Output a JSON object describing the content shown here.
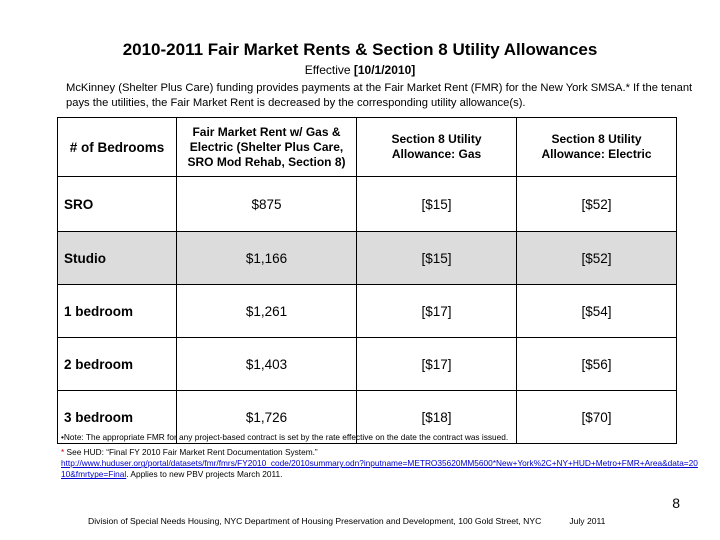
{
  "title": "2010-2011 Fair Market Rents & Section 8 Utility Allowances",
  "subtitle": {
    "prefix": "Effective ",
    "date": "[10/1/2010]"
  },
  "intro": "McKinney (Shelter Plus Care) funding provides payments at the Fair Market Rent (FMR) for the New York SMSA.*  If the tenant pays the utilities, the Fair Market Rent is decreased by the corresponding utility allowance(s).",
  "table": {
    "headers": [
      "# of Bedrooms",
      "Fair Market Rent w/ Gas & Electric (Shelter Plus Care, SRO Mod Rehab, Section 8)",
      "Section 8 Utility Allowance:  Gas",
      "Section 8 Utility Allowance: Electric"
    ],
    "rows": [
      [
        "SRO",
        "$875",
        "[$15]",
        "[$52]"
      ],
      [
        "Studio",
        "$1,166",
        "[$15]",
        "[$52]"
      ],
      [
        "1 bedroom",
        "$1,261",
        "[$17]",
        "[$54]"
      ],
      [
        "2 bedroom",
        "$1,403",
        "[$17]",
        "[$56]"
      ],
      [
        "3 bedroom",
        "$1,726",
        "[$18]",
        "[$70]"
      ]
    ],
    "shaded_row_color": "#dcdcdc"
  },
  "notes": {
    "note": "•Note:  The appropriate FMR for any project-based contract is set by the rate effective on the date the contract was issued.",
    "hud_star": "*",
    "hud_prefix": " See HUD: “Final FY 2010 Fair Market Rent Documentation System.”",
    "hud_link": "http://www.huduser.org/portal/datasets/fmr/fmrs/FY2010_code/2010summary.odn?inputname=METRO35620MM5600*New+York%2C+NY+HUD+Metro+FMR+Area&data=2010&fmrtype=Final",
    "hud_suffix": ". Applies to new PBV projects March 2011."
  },
  "page_number": "8",
  "footer": {
    "text": "Division of Special Needs Housing, NYC Department of Housing Preservation and Development, 100 Gold Street, NYC",
    "date": "July  2011"
  },
  "colors": {
    "link": "#0000cc",
    "asterisk": "#cc0000"
  }
}
